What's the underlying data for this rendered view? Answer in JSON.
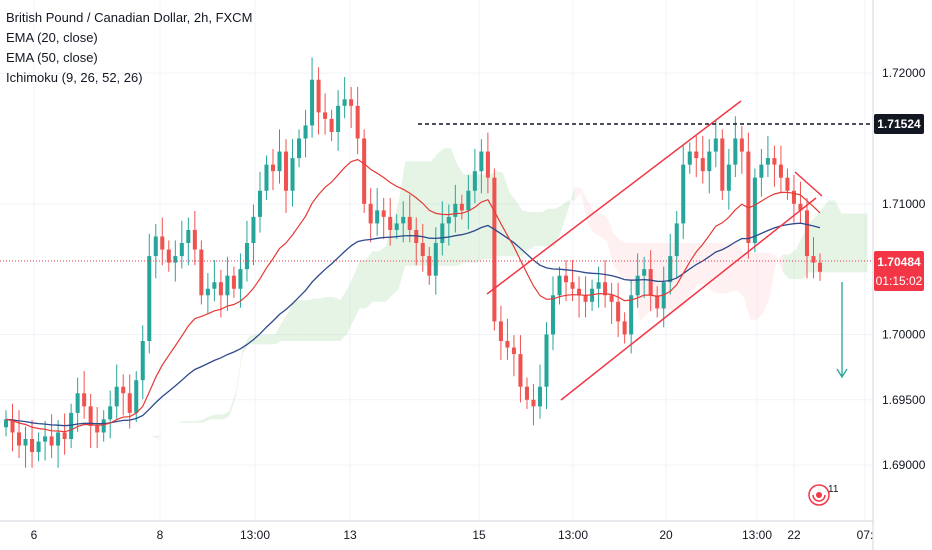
{
  "header": {
    "title": "British Pound / Canadian Dollar, 2h, FXCM",
    "indicators": [
      "EMA (20, close)",
      "EMA (50, close)",
      "Ichimoku (9, 26, 52, 26)"
    ]
  },
  "colors": {
    "up": "#26a69a",
    "down": "#ef5350",
    "ema20": "#e53935",
    "ema50": "#2e4a8c",
    "cloud_bull": "#a5d6a7",
    "cloud_bear": "#ffcdd2",
    "price_line": "#f23645",
    "trendline": "#f23645",
    "arrow": "#26a69a",
    "grid": "#f0f3fa"
  },
  "price_tags": {
    "resistance": "1.71524",
    "last": "1.70484",
    "countdown": "01:15:02"
  },
  "badge": "11",
  "chart_data": {
    "type": "candlestick",
    "title": "British Pound / Canadian Dollar, 2h, FXCM",
    "x_tick_labels": [
      "6",
      "8",
      "13:00",
      "13",
      "15",
      "13:00",
      "20",
      "13:00",
      "22",
      "07:"
    ],
    "y_tick_labels": [
      "1.72000",
      "1.71000",
      "1.70000",
      "1.69500",
      "1.69000"
    ],
    "ylim": [
      1.6858,
      1.7256
    ],
    "resistance_level": 1.71524,
    "last_price": 1.70484,
    "grid": true,
    "series": [
      {
        "name": "EMA (20, close)"
      },
      {
        "name": "EMA (50, close)"
      },
      {
        "name": "Ichimoku (9, 26, 52, 26)"
      }
    ],
    "closes": [
      1.6935,
      1.6925,
      1.6915,
      1.692,
      1.691,
      1.6918,
      1.6922,
      1.6915,
      1.6925,
      1.692,
      1.694,
      1.6955,
      1.6945,
      1.693,
      1.6925,
      1.6935,
      1.6945,
      1.696,
      1.6955,
      1.694,
      1.6965,
      1.6995,
      1.706,
      1.7075,
      1.7065,
      1.7055,
      1.706,
      1.707,
      1.708,
      1.7065,
      1.703,
      1.7035,
      1.704,
      1.703,
      1.7045,
      1.7035,
      1.705,
      1.707,
      1.709,
      1.711,
      1.713,
      1.7125,
      1.714,
      1.711,
      1.7135,
      1.715,
      1.716,
      1.7195,
      1.717,
      1.7165,
      1.7155,
      1.7175,
      1.718,
      1.7175,
      1.715,
      1.71,
      1.7085,
      1.7095,
      1.709,
      1.708,
      1.7085,
      1.709,
      1.708,
      1.707,
      1.706,
      1.7045,
      1.707,
      1.7085,
      1.709,
      1.71,
      1.7095,
      1.711,
      1.7125,
      1.714,
      1.712,
      1.701,
      1.6995,
      1.699,
      1.6985,
      1.696,
      1.695,
      1.6945,
      1.696,
      1.7,
      1.703,
      1.7045,
      1.704,
      1.7035,
      1.703,
      1.7025,
      1.7035,
      1.704,
      1.703,
      1.7025,
      1.701,
      1.7,
      1.703,
      1.7045,
      1.705,
      1.703,
      1.702,
      1.704,
      1.706,
      1.7085,
      1.713,
      1.714,
      1.7135,
      1.7125,
      1.714,
      1.715,
      1.711,
      1.713,
      1.715,
      1.714,
      1.707,
      1.712,
      1.713,
      1.7135,
      1.713,
      1.712,
      1.711,
      1.71,
      1.7095,
      1.706,
      1.7055,
      1.7048
    ]
  }
}
